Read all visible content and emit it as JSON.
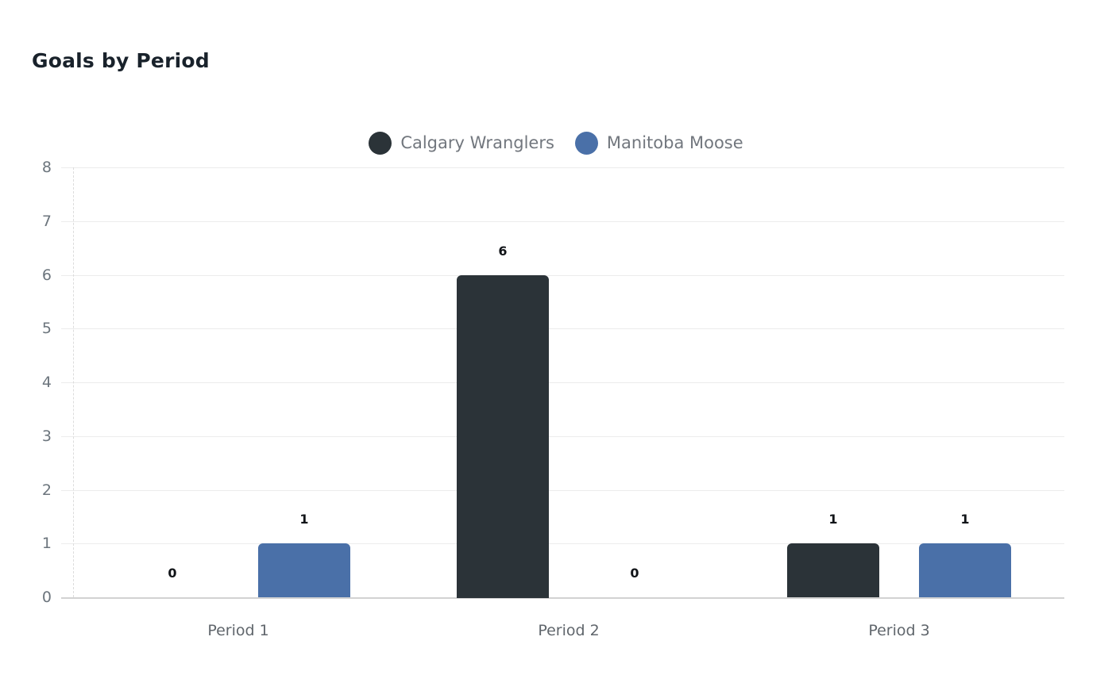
{
  "chart_data": {
    "type": "bar",
    "title": "Goals by Period",
    "categories": [
      "Period 1",
      "Period 2",
      "Period 3"
    ],
    "series": [
      {
        "name": "Calgary Wranglers",
        "color": "#2b3338",
        "values": [
          0,
          6,
          1
        ]
      },
      {
        "name": "Manitoba Moose",
        "color": "#4a70a8",
        "values": [
          1,
          0,
          1
        ]
      }
    ],
    "value_labels": [
      [
        "0",
        "6",
        "1"
      ],
      [
        "1",
        "0",
        "1"
      ]
    ],
    "xlabel": "",
    "ylabel": "",
    "ylim": [
      0,
      8
    ],
    "y_ticks": [
      0,
      1,
      2,
      3,
      4,
      5,
      6,
      7,
      8
    ],
    "grid": true,
    "legend_position": "top",
    "legend_marker": "circle",
    "background_color": "#ffffff",
    "grid_color": "#ececec",
    "baseline_color": "#d2d2d2",
    "axis_text_color": "#6c757d",
    "legend_text_color": "#72777e",
    "value_label_color": "#111418",
    "title_color": "#19222b"
  }
}
